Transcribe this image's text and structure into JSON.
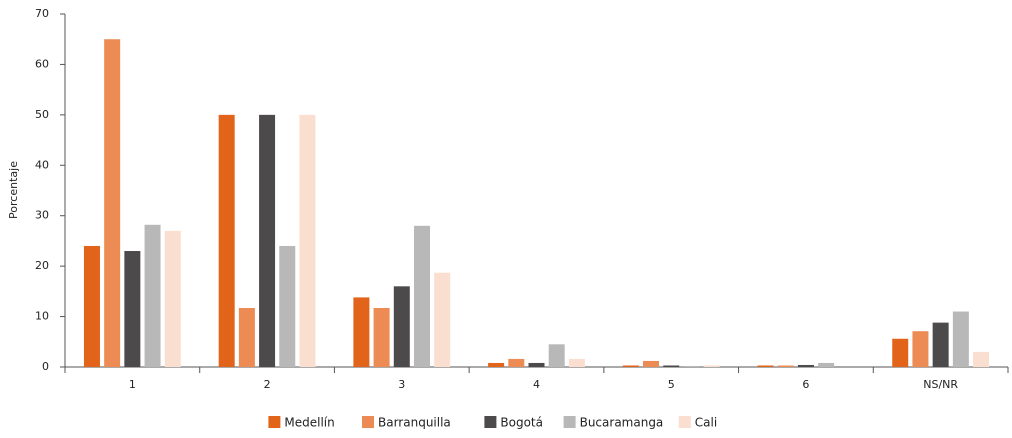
{
  "chart_data": {
    "type": "bar",
    "ylabel": "Porcentaje",
    "categories": [
      "1",
      "2",
      "3",
      "4",
      "5",
      "6",
      "NS/NR"
    ],
    "series": [
      {
        "name": "Medellín",
        "color": "#e2631a",
        "values": [
          24,
          50,
          13.8,
          0.8,
          0.3,
          0.3,
          5.6
        ]
      },
      {
        "name": "Barranquilla",
        "color": "#ed8b55",
        "values": [
          65,
          11.7,
          11.7,
          1.6,
          1.2,
          0.3,
          7.1
        ]
      },
      {
        "name": "Bogotá",
        "color": "#4d4a4b",
        "values": [
          23,
          50,
          16,
          0.8,
          0.3,
          0.4,
          8.8
        ]
      },
      {
        "name": "Bucaramanga",
        "color": "#b8b8b8",
        "values": [
          28.2,
          24,
          28,
          4.5,
          0.2,
          0.8,
          11
        ]
      },
      {
        "name": "Cali",
        "color": "#fadfd0",
        "values": [
          27,
          50,
          18.7,
          1.6,
          0.3,
          0,
          3
        ]
      }
    ],
    "ylim": [
      0,
      70
    ],
    "yticks": [
      0,
      10,
      20,
      30,
      40,
      50,
      60,
      70
    ],
    "grid": false
  }
}
